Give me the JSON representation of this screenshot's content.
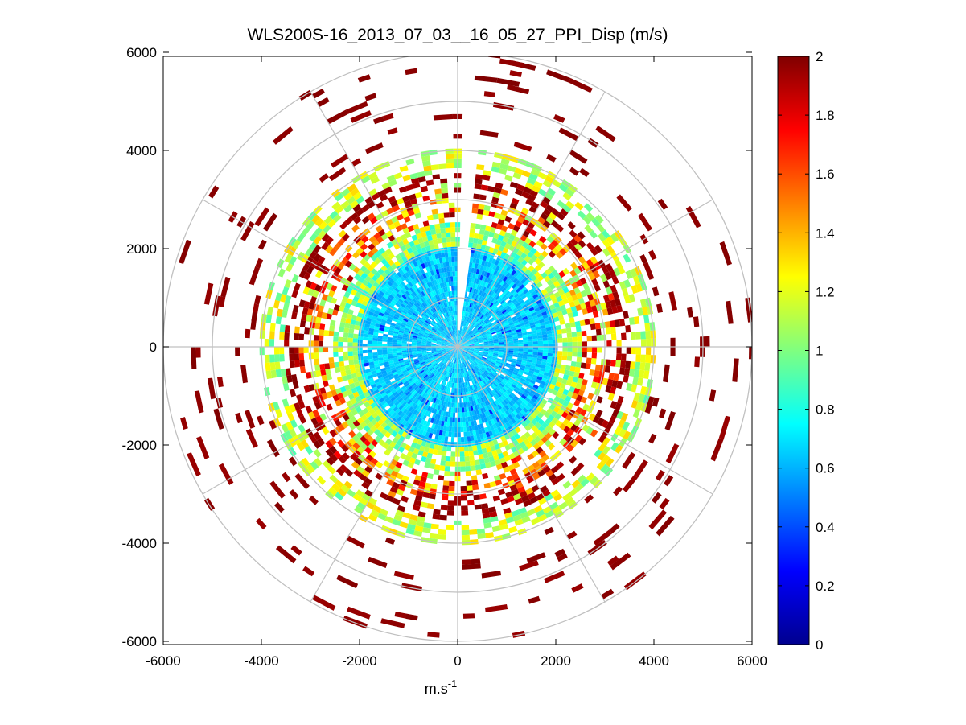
{
  "chart_data": {
    "type": "heatmap",
    "subtype": "polar-ppi-scan",
    "title": "WLS200S-16_2013_07_03__16_05_27_PPI_Disp (m/s)",
    "xlabel_base": "m.s",
    "xlabel_superscript": "-1",
    "ylabel": "",
    "xlim": [
      -6000,
      6000
    ],
    "ylim": [
      -6000,
      6000
    ],
    "x_ticks": [
      -6000,
      -4000,
      -2000,
      0,
      2000,
      4000,
      6000
    ],
    "y_ticks": [
      6000,
      4000,
      2000,
      0,
      -2000,
      -4000,
      -6000
    ],
    "x_tick_labels": [
      "-6000",
      "-4000",
      "-2000",
      "0",
      "2000",
      "4000",
      "6000"
    ],
    "y_tick_labels": [
      "6000",
      "4000",
      "2000",
      "0",
      "-2000",
      "-4000",
      "-6000"
    ],
    "polar_grid": {
      "ring_radii": [
        1000,
        2000,
        3000,
        4000,
        5000,
        6000
      ],
      "spoke_angles_deg": [
        0,
        30,
        60,
        90,
        120,
        150,
        180,
        210,
        240,
        270,
        300,
        330
      ]
    },
    "colorbar": {
      "colormap": "jet",
      "range": [
        0,
        2
      ],
      "ticks": [
        0,
        0.2,
        0.4,
        0.6,
        0.8,
        1,
        1.2,
        1.4,
        1.6,
        1.8,
        2
      ],
      "tick_labels": [
        "0",
        "0.2",
        "0.4",
        "0.6",
        "0.8",
        "1",
        "1.2",
        "1.4",
        "1.6",
        "1.8",
        "2"
      ]
    },
    "regions": [
      {
        "name": "inner-core",
        "r_range": [
          0,
          2000
        ],
        "value_range": [
          0.55,
          0.75
        ],
        "coverage": 0.97
      },
      {
        "name": "transition-ring",
        "r_range": [
          2000,
          2500
        ],
        "value_range": [
          0.8,
          1.3
        ],
        "coverage": 0.85
      },
      {
        "name": "mixed-ring",
        "r_range": [
          2500,
          3300
        ],
        "value_range": [
          1.0,
          2.0
        ],
        "coverage": 0.6
      },
      {
        "name": "dark-red-ring",
        "r_range": [
          3000,
          3500
        ],
        "value_range": [
          1.9,
          2.0
        ],
        "coverage": 0.5
      },
      {
        "name": "yellow-rim",
        "r_range": [
          3500,
          4000
        ],
        "value_range": [
          0.9,
          1.35
        ],
        "coverage": 0.55
      },
      {
        "name": "sparse-outer",
        "r_range": [
          4000,
          6000
        ],
        "value_range": [
          1.95,
          2.0
        ],
        "coverage": 0.06
      }
    ],
    "blank_sector_deg": [
      82,
      88
    ]
  }
}
